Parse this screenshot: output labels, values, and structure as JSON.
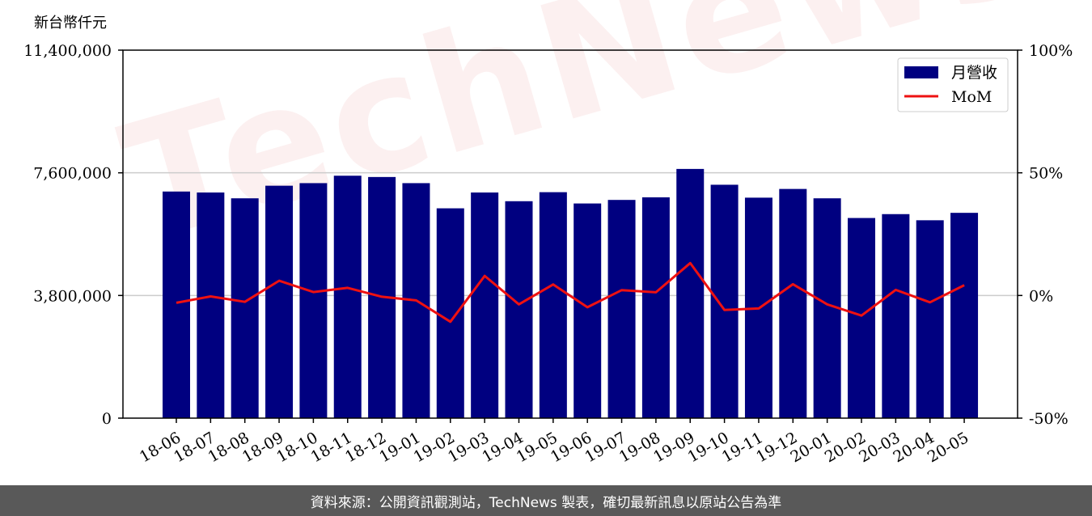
{
  "unit_label": "新台幣仟元",
  "footer_text": "資料來源：公開資訊觀測站，TechNews 製表，確切最新訊息以原站公告為準",
  "watermark_text": "TechNews",
  "colors": {
    "bar": "#000080",
    "line": "#ee1111",
    "grid": "#cccccc",
    "footer_bg": "#595959"
  },
  "chart_data": {
    "type": "bar",
    "categories": [
      "18-06",
      "18-07",
      "18-08",
      "18-09",
      "18-10",
      "18-11",
      "18-12",
      "19-01",
      "19-02",
      "19-03",
      "19-04",
      "19-05",
      "19-06",
      "19-07",
      "19-08",
      "19-09",
      "19-10",
      "19-11",
      "19-12",
      "20-01",
      "20-02",
      "20-03",
      "20-04",
      "20-05"
    ],
    "series": [
      {
        "name": "月營收",
        "axis": "left",
        "chart_type": "bar",
        "values": [
          7020000,
          6990000,
          6810000,
          7200000,
          7280000,
          7510000,
          7470000,
          7280000,
          6500000,
          6990000,
          6720000,
          7000000,
          6650000,
          6760000,
          6840000,
          7720000,
          7230000,
          6830000,
          7100000,
          6810000,
          6200000,
          6320000,
          6130000,
          6360000
        ]
      },
      {
        "name": "MoM",
        "axis": "right",
        "chart_type": "line",
        "values": [
          -3.0,
          -0.4,
          -2.6,
          6.0,
          1.4,
          3.1,
          -0.5,
          -2.0,
          -10.7,
          8.0,
          -3.6,
          4.5,
          -4.8,
          2.2,
          1.3,
          13.2,
          -5.9,
          -5.3,
          4.6,
          -3.6,
          -8.2,
          2.3,
          -2.8,
          4.2
        ]
      }
    ],
    "y_left": {
      "ylim": [
        0,
        11400000
      ],
      "ticks": [
        "0",
        "3,800,000",
        "7,600,000",
        "11,400,000"
      ]
    },
    "y_right": {
      "ylim": [
        -50,
        100
      ],
      "ticks": [
        "-50%",
        "0%",
        "50%",
        "100%"
      ]
    },
    "grid": "horizontal",
    "legend": {
      "placement": "top-right",
      "entries": [
        "月營收",
        "MoM"
      ]
    }
  }
}
